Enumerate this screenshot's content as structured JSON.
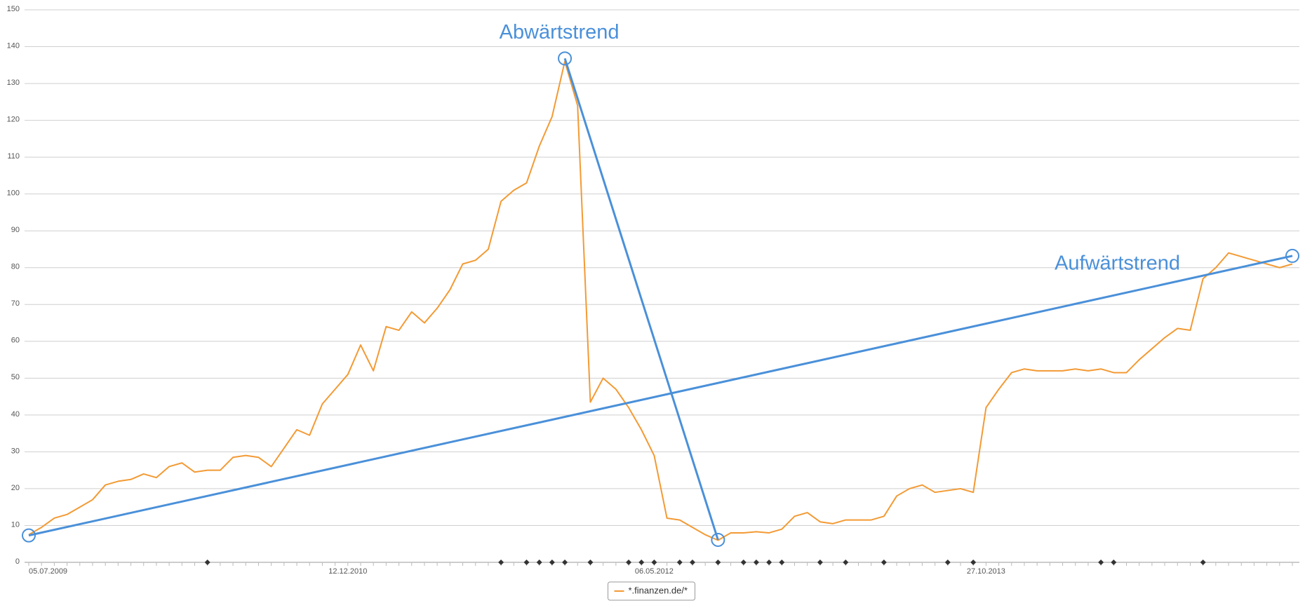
{
  "chart_data": {
    "type": "line",
    "categories": [
      "05.07.2009",
      null,
      null,
      null,
      null,
      null,
      null,
      null,
      null,
      null,
      null,
      null,
      null,
      null,
      null,
      null,
      null,
      null,
      null,
      null,
      null,
      null,
      null,
      null,
      null,
      "12.12.2010",
      null,
      null,
      null,
      null,
      null,
      null,
      null,
      null,
      null,
      null,
      null,
      null,
      null,
      null,
      null,
      null,
      null,
      null,
      null,
      null,
      null,
      null,
      null,
      "06.05.2012",
      null,
      null,
      null,
      null,
      null,
      null,
      null,
      null,
      null,
      null,
      null,
      null,
      null,
      null,
      null,
      null,
      null,
      null,
      null,
      null,
      null,
      null,
      null,
      null,
      null,
      "27.10.2013",
      null,
      null,
      null,
      null,
      null,
      null,
      null,
      null,
      null,
      null,
      null,
      null,
      null,
      null,
      null,
      null,
      null,
      null,
      null,
      null,
      null,
      null,
      null,
      null
    ],
    "series": [
      {
        "name": "*.finanzen.de/*",
        "color": "#f39a34",
        "values": [
          7.5,
          9.5,
          12,
          13,
          15,
          17,
          21,
          22,
          22.5,
          24,
          23,
          26,
          27,
          24.5,
          25,
          25,
          28.5,
          29,
          28.5,
          26,
          31,
          36,
          34.5,
          43,
          47,
          51,
          59,
          52,
          64,
          63,
          68,
          65,
          69,
          74,
          81,
          82,
          85,
          98,
          101,
          103,
          113,
          121,
          136,
          124,
          43.5,
          50,
          47,
          42,
          36,
          29,
          12,
          11.5,
          9.5,
          7.5,
          6,
          8,
          8,
          8.3,
          8,
          9,
          12.5,
          13.5,
          11,
          10.5,
          11.5,
          11.5,
          11.5,
          12.5,
          18,
          20,
          21,
          19,
          19.5,
          20,
          19,
          42,
          47,
          51.5,
          52.5,
          52,
          52,
          52,
          52.5,
          52,
          52.5,
          51.5,
          51.5,
          55,
          58,
          61,
          63.5,
          63,
          77,
          80,
          84,
          83,
          82,
          81,
          80,
          81
        ]
      }
    ],
    "ylim": [
      0,
      150
    ],
    "yticks": [
      0,
      10,
      20,
      30,
      40,
      50,
      60,
      70,
      80,
      90,
      100,
      110,
      120,
      130,
      140,
      150
    ],
    "grid": true,
    "legend": "bottom",
    "trend_color": "#4a90d9",
    "annotations": [
      {
        "label": "Abwärtstrend",
        "start": {
          "index": 42,
          "value": 136.8
        },
        "end": {
          "index": 54,
          "value": 6.1
        }
      },
      {
        "label": "Aufwärtstrend",
        "start": {
          "index": 0,
          "value": 7.3
        },
        "end": {
          "index": 99,
          "value": 83.2
        }
      }
    ],
    "event_markers": [
      14,
      37,
      39,
      40,
      41,
      42,
      44,
      47,
      48,
      49,
      51,
      52,
      54,
      56,
      57,
      58,
      59,
      62,
      64,
      67,
      72,
      74,
      84,
      85,
      92
    ]
  }
}
